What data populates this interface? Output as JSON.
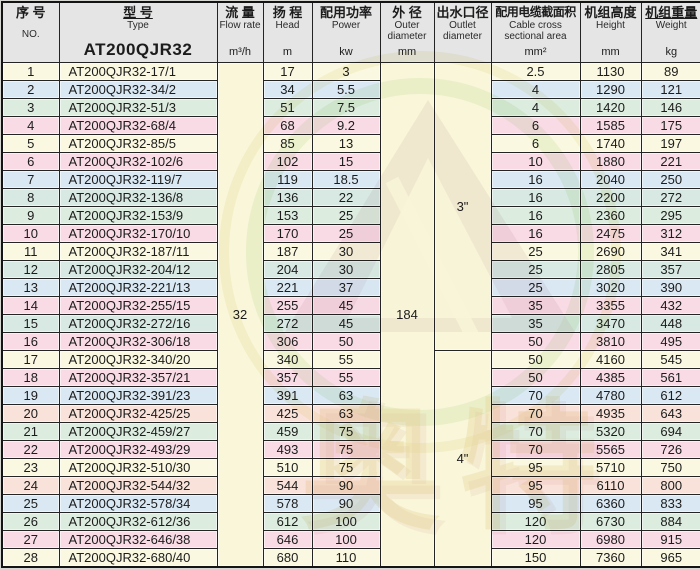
{
  "header": {
    "no": {
      "zh": "序 号",
      "en": "NO."
    },
    "type": {
      "zh": "型 号",
      "en": "Type",
      "model": "AT200QJR32"
    },
    "flow": {
      "zh": "流 量",
      "en": "Flow rate",
      "unit": "m³/h"
    },
    "head": {
      "zh": "扬 程",
      "en": "Head",
      "unit": "m"
    },
    "power": {
      "zh": "配用功率",
      "en": "Power",
      "unit": "kw"
    },
    "outer": {
      "zh": "外 径",
      "en1": "Outer",
      "en2": "diameter",
      "unit": "mm"
    },
    "outlet": {
      "zh": "出水口径",
      "en1": "Outlet",
      "en2": "diameter"
    },
    "cable": {
      "zh": "配用电缆截面积",
      "en1": "Cable cross",
      "en2": "sectional area",
      "unit": "mm²"
    },
    "height": {
      "zh": "机组高度",
      "en": "Height",
      "unit": "mm"
    },
    "weight": {
      "zh": "机组重量",
      "en": "Weight",
      "unit": "kg"
    }
  },
  "merged": {
    "flow_rate": "32",
    "outer_diameter": "184",
    "outlet_small": "3\"",
    "outlet_large": "4\""
  },
  "watermark": {
    "chars": "奥特"
  },
  "colors": {
    "cream": "#faf8e0",
    "blue": "#d9e8f3",
    "green": "#dcecdf",
    "teal": "#d7e9e2",
    "pink": "#f8dbe5",
    "salmon": "#f9e2d9",
    "merged_bg": "#f9f6da",
    "header_bg": "#e4e5e4",
    "border": "#242424"
  },
  "rows": [
    {
      "no": "1",
      "model": "AT200QJR32-17/1",
      "head": "17",
      "power": "3",
      "cable": "2.5",
      "height": "1130",
      "weight": "89",
      "color": "cream"
    },
    {
      "no": "2",
      "model": "AT200QJR32-34/2",
      "head": "34",
      "power": "5.5",
      "cable": "4",
      "height": "1290",
      "weight": "121",
      "color": "blue"
    },
    {
      "no": "3",
      "model": "AT200QJR32-51/3",
      "head": "51",
      "power": "7.5",
      "cable": "4",
      "height": "1420",
      "weight": "146",
      "color": "green"
    },
    {
      "no": "4",
      "model": "AT200QJR32-68/4",
      "head": "68",
      "power": "9.2",
      "cable": "6",
      "height": "1585",
      "weight": "175",
      "color": "pink"
    },
    {
      "no": "5",
      "model": "AT200QJR32-85/5",
      "head": "85",
      "power": "13",
      "cable": "6",
      "height": "1740",
      "weight": "197",
      "color": "cream"
    },
    {
      "no": "6",
      "model": "AT200QJR32-102/6",
      "head": "102",
      "power": "15",
      "cable": "10",
      "height": "1880",
      "weight": "221",
      "color": "pink"
    },
    {
      "no": "7",
      "model": "AT200QJR32-119/7",
      "head": "119",
      "power": "18.5",
      "cable": "16",
      "height": "2040",
      "weight": "250",
      "color": "blue"
    },
    {
      "no": "8",
      "model": "AT200QJR32-136/8",
      "head": "136",
      "power": "22",
      "cable": "16",
      "height": "2200",
      "weight": "272",
      "color": "teal"
    },
    {
      "no": "9",
      "model": "AT200QJR32-153/9",
      "head": "153",
      "power": "25",
      "cable": "16",
      "height": "2360",
      "weight": "295",
      "color": "green"
    },
    {
      "no": "10",
      "model": "AT200QJR32-170/10",
      "head": "170",
      "power": "25",
      "cable": "16",
      "height": "2475",
      "weight": "312",
      "color": "pink"
    },
    {
      "no": "11",
      "model": "AT200QJR32-187/11",
      "head": "187",
      "power": "30",
      "cable": "25",
      "height": "2690",
      "weight": "341",
      "color": "cream"
    },
    {
      "no": "12",
      "model": "AT200QJR32-204/12",
      "head": "204",
      "power": "30",
      "cable": "25",
      "height": "2805",
      "weight": "357",
      "color": "teal"
    },
    {
      "no": "13",
      "model": "AT200QJR32-221/13",
      "head": "221",
      "power": "37",
      "cable": "25",
      "height": "3020",
      "weight": "390",
      "color": "blue"
    },
    {
      "no": "14",
      "model": "AT200QJR32-255/15",
      "head": "255",
      "power": "45",
      "cable": "35",
      "height": "3355",
      "weight": "432",
      "color": "pink"
    },
    {
      "no": "15",
      "model": "AT200QJR32-272/16",
      "head": "272",
      "power": "45",
      "cable": "35",
      "height": "3470",
      "weight": "448",
      "color": "teal"
    },
    {
      "no": "16",
      "model": "AT200QJR32-306/18",
      "head": "306",
      "power": "50",
      "cable": "50",
      "height": "3810",
      "weight": "495",
      "color": "pink"
    },
    {
      "no": "17",
      "model": "AT200QJR32-340/20",
      "head": "340",
      "power": "55",
      "cable": "50",
      "height": "4160",
      "weight": "545",
      "color": "cream"
    },
    {
      "no": "18",
      "model": "AT200QJR32-357/21",
      "head": "357",
      "power": "55",
      "cable": "50",
      "height": "4385",
      "weight": "561",
      "color": "pink"
    },
    {
      "no": "19",
      "model": "AT200QJR32-391/23",
      "head": "391",
      "power": "63",
      "cable": "70",
      "height": "4780",
      "weight": "612",
      "color": "blue"
    },
    {
      "no": "20",
      "model": "AT200QJR32-425/25",
      "head": "425",
      "power": "63",
      "cable": "70",
      "height": "4935",
      "weight": "643",
      "color": "salmon"
    },
    {
      "no": "21",
      "model": "AT200QJR32-459/27",
      "head": "459",
      "power": "75",
      "cable": "70",
      "height": "5320",
      "weight": "694",
      "color": "green"
    },
    {
      "no": "22",
      "model": "AT200QJR32-493/29",
      "head": "493",
      "power": "75",
      "cable": "70",
      "height": "5565",
      "weight": "726",
      "color": "pink"
    },
    {
      "no": "23",
      "model": "AT200QJR32-510/30",
      "head": "510",
      "power": "75",
      "cable": "95",
      "height": "5710",
      "weight": "750",
      "color": "cream"
    },
    {
      "no": "24",
      "model": "AT200QJR32-544/32",
      "head": "544",
      "power": "90",
      "cable": "95",
      "height": "6110",
      "weight": "800",
      "color": "salmon"
    },
    {
      "no": "25",
      "model": "AT200QJR32-578/34",
      "head": "578",
      "power": "90",
      "cable": "95",
      "height": "6360",
      "weight": "833",
      "color": "blue"
    },
    {
      "no": "26",
      "model": "AT200QJR32-612/36",
      "head": "612",
      "power": "100",
      "cable": "120",
      "height": "6730",
      "weight": "884",
      "color": "green"
    },
    {
      "no": "27",
      "model": "AT200QJR32-646/38",
      "head": "646",
      "power": "100",
      "cable": "120",
      "height": "6980",
      "weight": "915",
      "color": "pink"
    },
    {
      "no": "28",
      "model": "AT200QJR32-680/40",
      "head": "680",
      "power": "110",
      "cable": "150",
      "height": "7360",
      "weight": "965",
      "color": "cream"
    }
  ]
}
